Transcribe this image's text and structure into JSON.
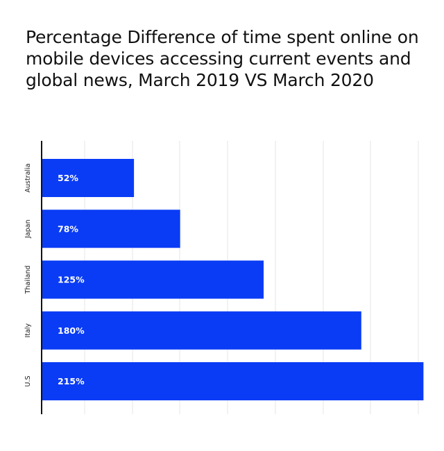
{
  "chart_data": {
    "type": "bar",
    "orientation": "horizontal",
    "title": "Percentage Difference of time spent online on mobile devices accessing current events and global news, March 2019 VS March 2020",
    "categories": [
      "Australia",
      "Japan",
      "Thailand",
      "Italy",
      "U.S"
    ],
    "values": [
      52,
      78,
      125,
      180,
      215
    ],
    "value_labels": [
      "52%",
      "78%",
      "125%",
      "180%",
      "215%"
    ],
    "xlim": [
      0,
      225
    ],
    "grid": "vertical",
    "legend": "none",
    "bar_color": "#0a3cf5",
    "label_color": "#ffffff"
  }
}
